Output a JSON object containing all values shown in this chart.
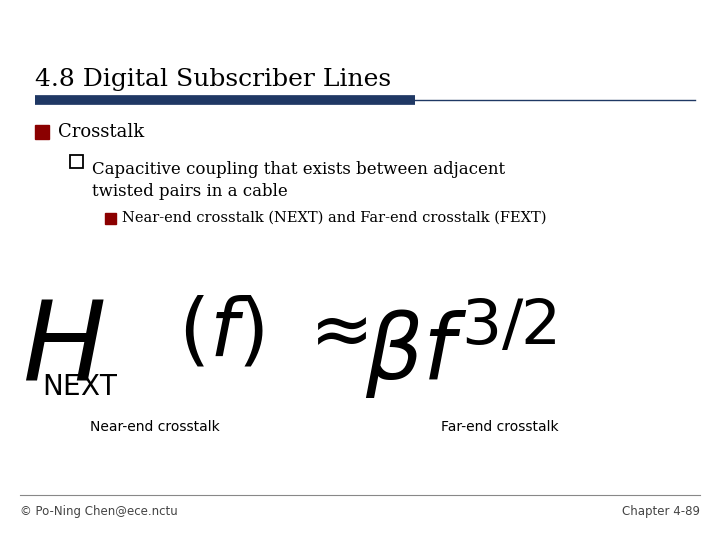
{
  "title": "4.8 Digital Subscriber Lines",
  "title_fontsize": 18,
  "title_color": "#000000",
  "divider_thick_color": "#1F3864",
  "bullet1_text": "Crosstalk",
  "bullet1_color": "#8B0000",
  "bullet2_text": "Capacitive coupling that exists between adjacent\ntwisted pairs in a cable",
  "bullet3_text": "Near-end crosstalk (NEXT) and Far-end crosstalk (FEXT)",
  "bullet3_color": "#8B0000",
  "formula_label_left": "Near-end crosstalk",
  "formula_label_right": "Far-end crosstalk",
  "footer_left": "© Po-Ning Chen@ece.nctu",
  "footer_right": "Chapter 4-89",
  "bg_color": "#FFFFFF",
  "footer_color": "#444444",
  "font_color": "#000000",
  "formula_color": "#000000"
}
